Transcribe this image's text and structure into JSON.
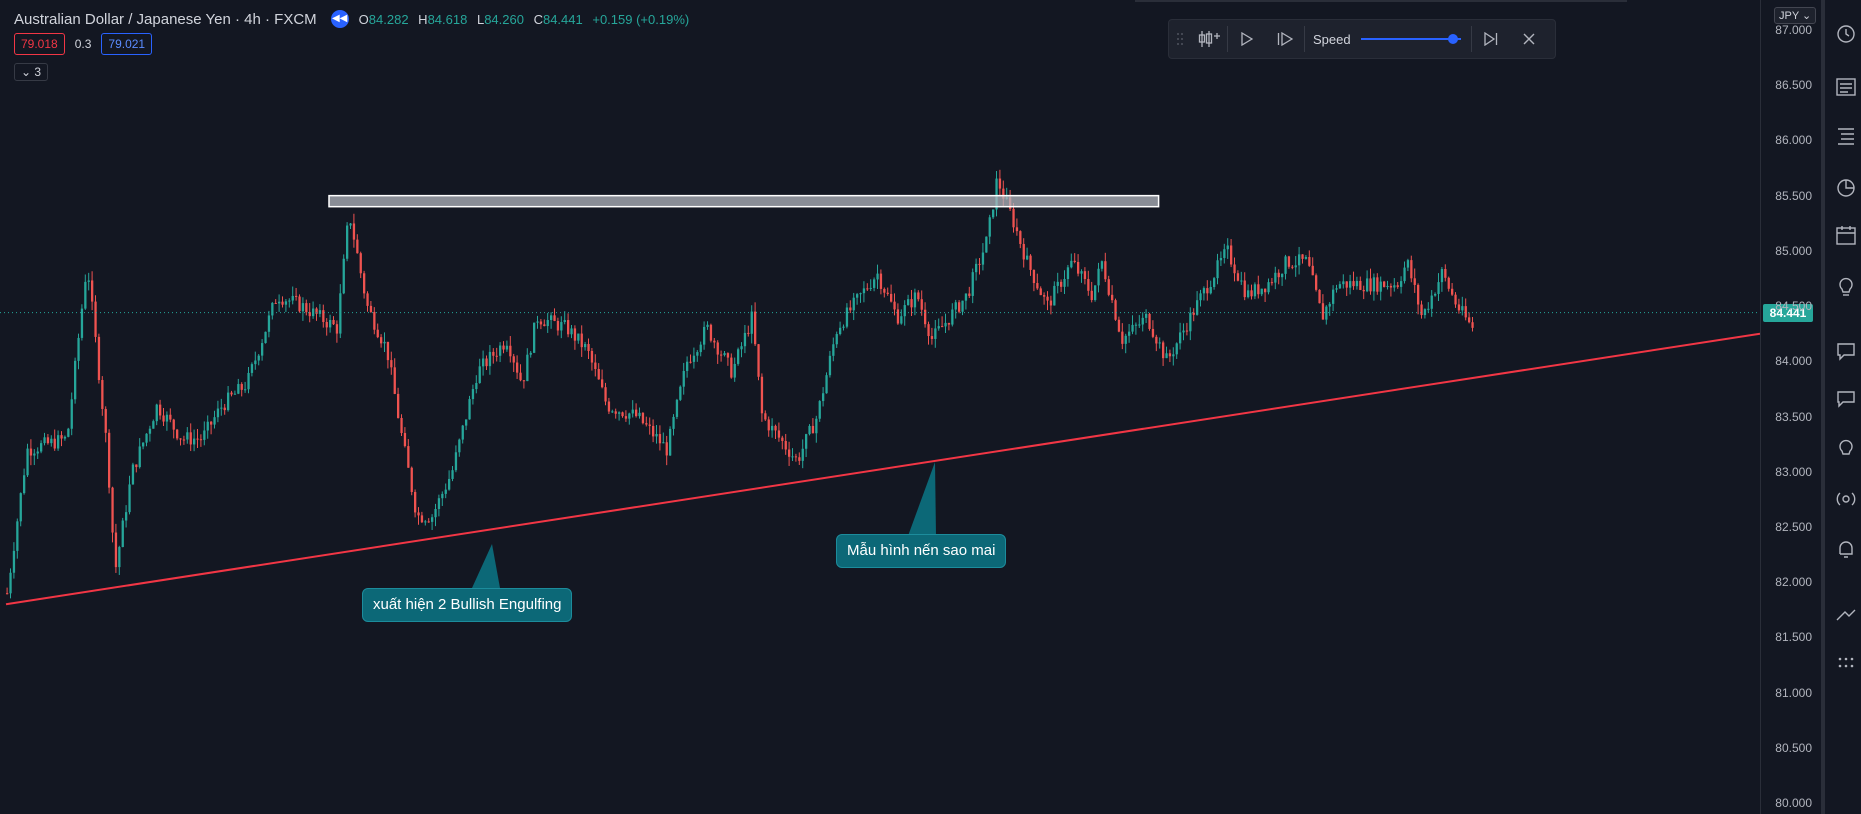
{
  "header": {
    "symbol_title": "Australian Dollar / Japanese Yen · 4h · FXCM",
    "replay_icon": "rewind-icon",
    "ohlc": {
      "o_key": "O",
      "o_val": "84.282",
      "h_key": "H",
      "h_val": "84.618",
      "l_key": "L",
      "l_val": "84.260",
      "c_key": "C",
      "c_val": "84.441",
      "change": "+0.159 (+0.19%)"
    },
    "bid": "79.018",
    "spread": "0.3",
    "ask": "79.021",
    "indicators_toggle": "3"
  },
  "replay_toolbar": {
    "speed_label": "Speed",
    "speed_fraction": 0.92,
    "icons": [
      "drag-handle-icon",
      "select-bar-icon",
      "play-icon",
      "step-forward-icon",
      "jump-to-realtime-icon",
      "close-icon"
    ]
  },
  "price_axis": {
    "currency": "JPY",
    "ticks": [
      "87.000",
      "86.500",
      "86.000",
      "85.500",
      "85.000",
      "84.500",
      "84.000",
      "83.500",
      "83.000",
      "82.500",
      "82.000",
      "81.500",
      "81.000",
      "80.500",
      "80.000"
    ],
    "last_price": "84.441"
  },
  "annotations": {
    "callout_1": "xuất hiện 2 Bullish Engulfing",
    "callout_2": "Mẫu hình nến sao mai"
  },
  "chart_data": {
    "type": "candlestick",
    "symbol": "Australian Dollar / Japanese Yen",
    "timeframe": "4h",
    "ylim": [
      80.0,
      87.0
    ],
    "last_close": 84.441,
    "resistance_zone": [
      85.4,
      85.5
    ],
    "trendline": {
      "start_price": 81.8,
      "end_price": 84.25
    },
    "colors": {
      "up": "#26a69a",
      "down": "#ef5350",
      "trendline": "#f23645"
    },
    "path_anchors": [
      [
        0,
        81.9
      ],
      [
        20,
        83.2
      ],
      [
        60,
        83.3
      ],
      [
        80,
        84.9
      ],
      [
        100,
        83.2
      ],
      [
        108,
        82.1
      ],
      [
        125,
        83.0
      ],
      [
        150,
        83.6
      ],
      [
        175,
        83.3
      ],
      [
        195,
        83.3
      ],
      [
        215,
        83.6
      ],
      [
        240,
        83.8
      ],
      [
        270,
        84.6
      ],
      [
        295,
        84.5
      ],
      [
        330,
        84.3
      ],
      [
        342,
        85.35
      ],
      [
        360,
        84.5
      ],
      [
        380,
        84.1
      ],
      [
        395,
        83.3
      ],
      [
        410,
        82.6
      ],
      [
        425,
        82.6
      ],
      [
        445,
        83.0
      ],
      [
        470,
        83.9
      ],
      [
        500,
        84.2
      ],
      [
        515,
        83.8
      ],
      [
        530,
        84.4
      ],
      [
        560,
        84.3
      ],
      [
        580,
        84.1
      ],
      [
        600,
        83.6
      ],
      [
        630,
        83.5
      ],
      [
        660,
        83.2
      ],
      [
        680,
        84.0
      ],
      [
        700,
        84.3
      ],
      [
        725,
        83.9
      ],
      [
        745,
        84.4
      ],
      [
        755,
        83.5
      ],
      [
        790,
        83.1
      ],
      [
        810,
        83.5
      ],
      [
        830,
        84.3
      ],
      [
        870,
        84.8
      ],
      [
        890,
        84.4
      ],
      [
        910,
        84.6
      ],
      [
        925,
        84.2
      ],
      [
        960,
        84.6
      ],
      [
        980,
        85.1
      ],
      [
        990,
        85.65
      ],
      [
        1005,
        85.3
      ],
      [
        1020,
        84.9
      ],
      [
        1040,
        84.5
      ],
      [
        1065,
        84.9
      ],
      [
        1085,
        84.6
      ],
      [
        1095,
        84.9
      ],
      [
        1115,
        84.2
      ],
      [
        1140,
        84.4
      ],
      [
        1160,
        84.0
      ],
      [
        1195,
        84.6
      ],
      [
        1220,
        85.0
      ],
      [
        1240,
        84.6
      ],
      [
        1260,
        84.7
      ],
      [
        1280,
        84.9
      ],
      [
        1300,
        84.9
      ],
      [
        1315,
        84.4
      ],
      [
        1330,
        84.7
      ],
      [
        1360,
        84.7
      ],
      [
        1390,
        84.7
      ],
      [
        1400,
        84.9
      ],
      [
        1415,
        84.4
      ],
      [
        1435,
        84.8
      ],
      [
        1450,
        84.5
      ],
      [
        1465,
        84.3
      ],
      [
        1470,
        84.44
      ]
    ]
  }
}
